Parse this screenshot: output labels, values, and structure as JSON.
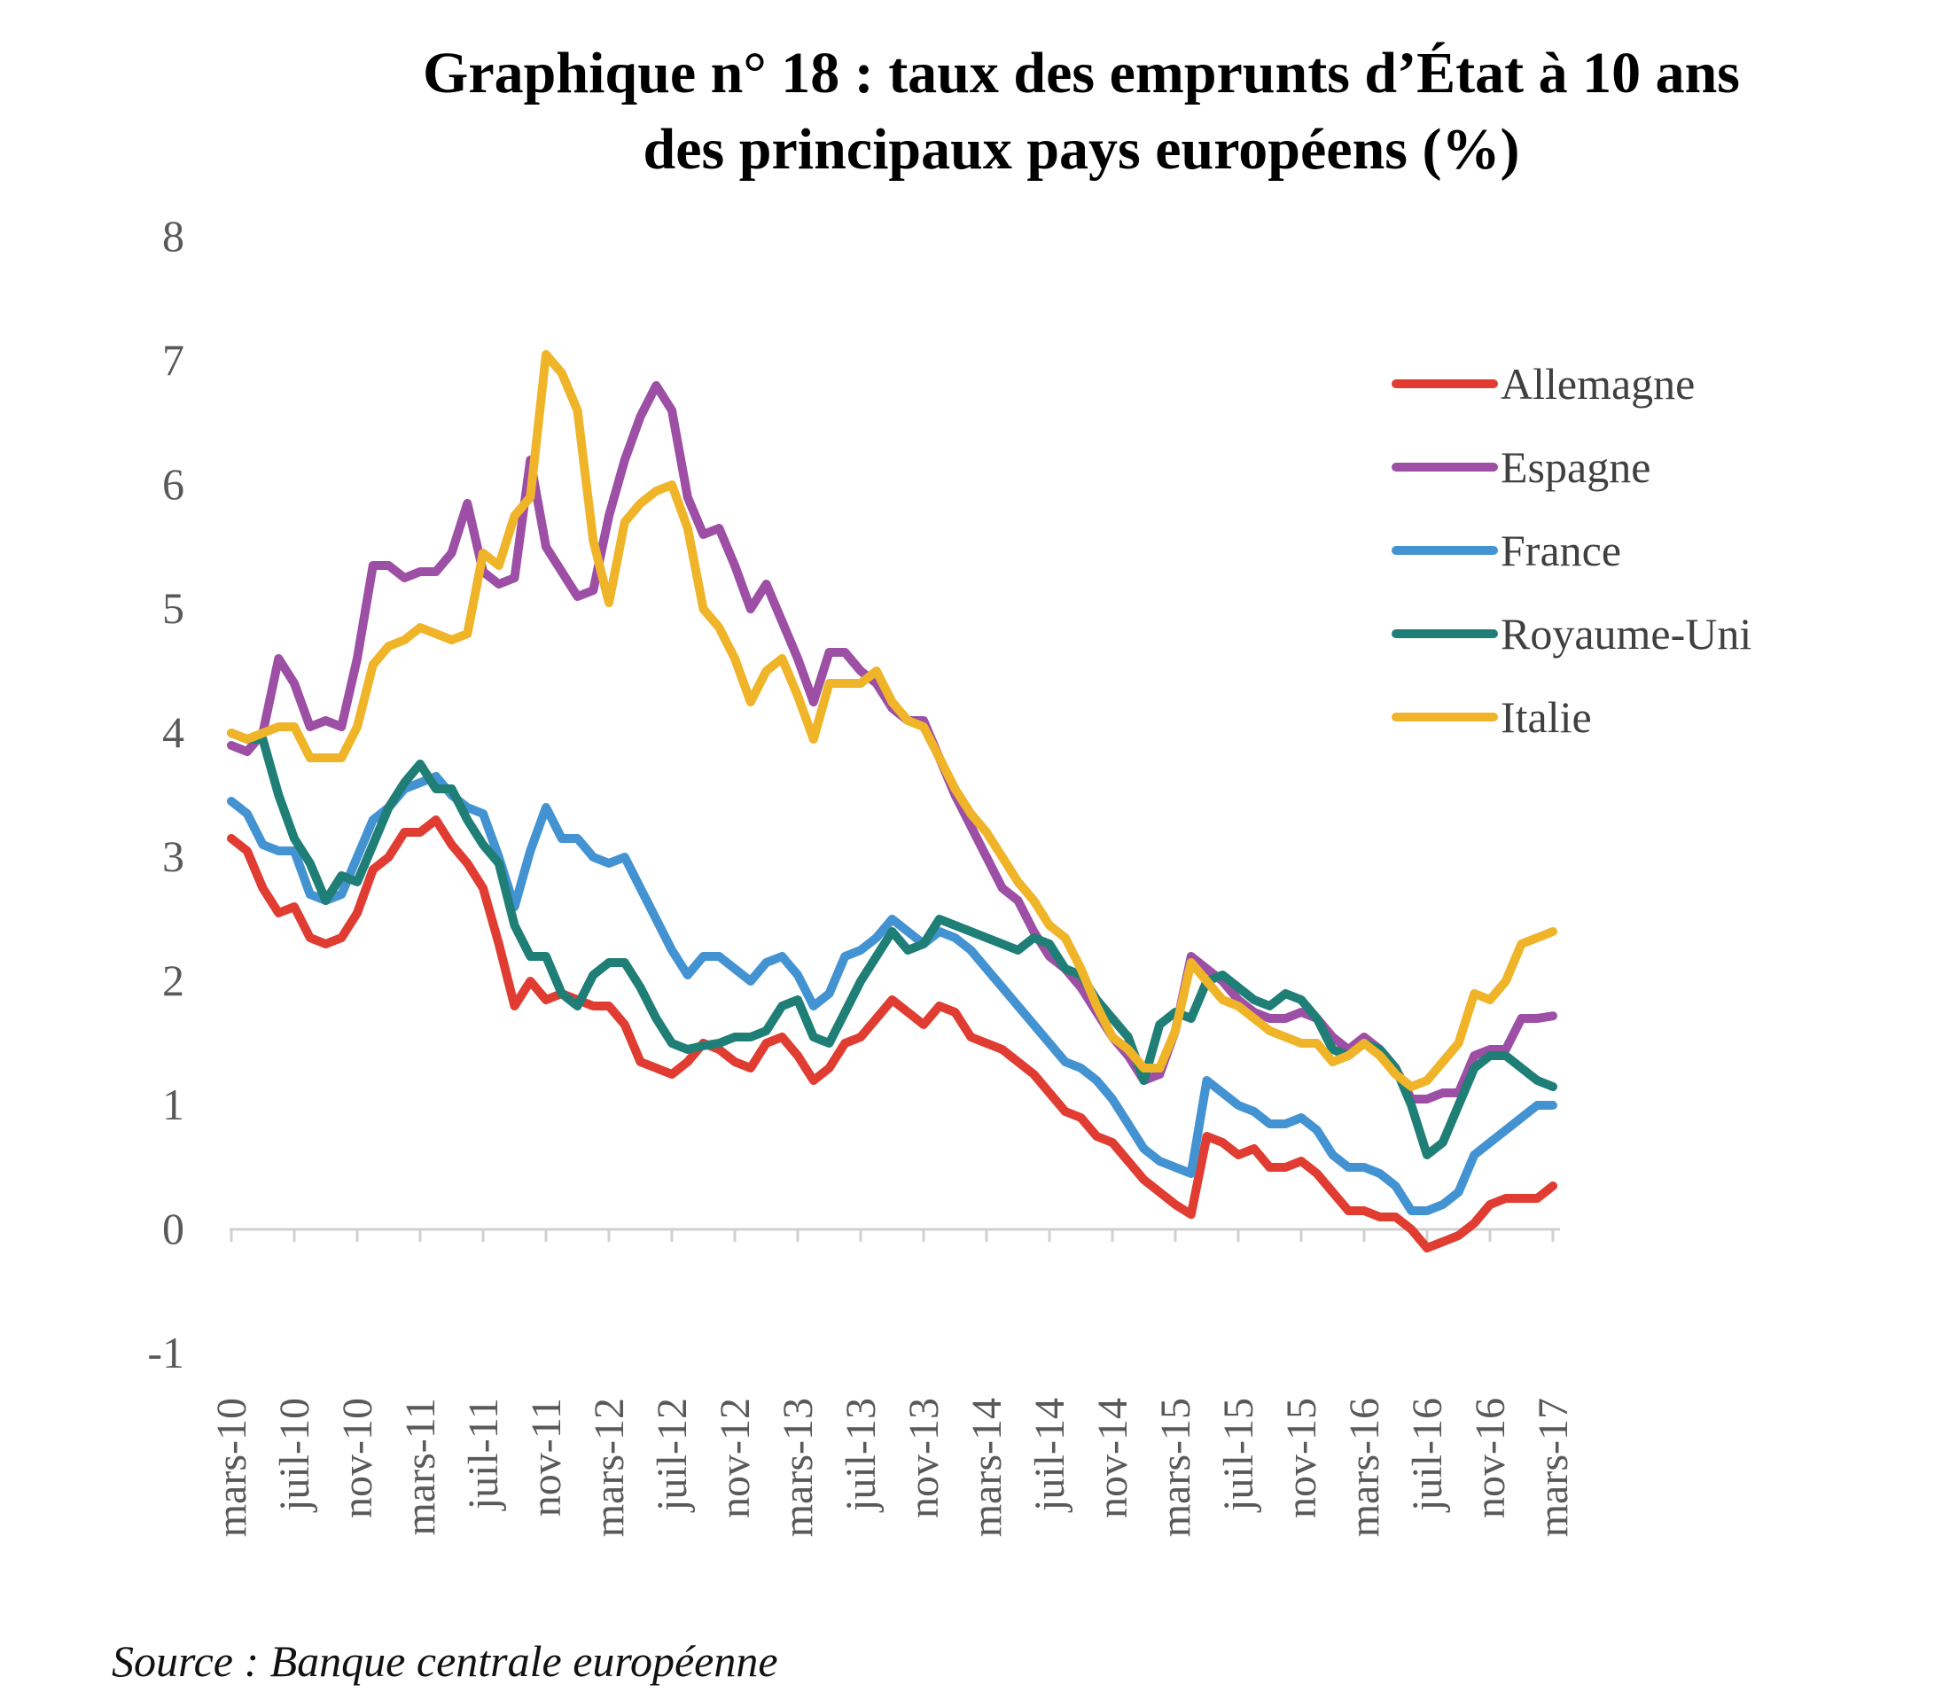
{
  "title_line1": "Graphique n° 18 : taux des emprunts d’État à 10 ans",
  "title_line2": "des principaux pays européens (%)",
  "source": "Source : Banque centrale européenne",
  "chart_data": {
    "type": "line",
    "title": "Graphique n° 18 : taux des emprunts d’État à 10 ans des principaux pays européens (%)",
    "xlabel": "",
    "ylabel": "%",
    "ylim": [
      -1,
      8
    ],
    "yticks": [
      8,
      7,
      6,
      5,
      4,
      3,
      2,
      1,
      0,
      -1
    ],
    "grid": false,
    "legend_position": "top-right",
    "x_tick_labels": [
      "mars-10",
      "juil-10",
      "nov-10",
      "mars-11",
      "juil-11",
      "nov-11",
      "mars-12",
      "juil-12",
      "nov-12",
      "mars-13",
      "juil-13",
      "nov-13",
      "mars-14",
      "juil-14",
      "nov-14",
      "mars-15",
      "juil-15",
      "nov-15",
      "mars-16",
      "juil-16",
      "nov-16",
      "mars-17"
    ],
    "x_start": "mars-10",
    "x_end": "mars-17",
    "x_frequency": "monthly",
    "series": [
      {
        "name": "Allemagne",
        "color": "#e03c31",
        "values": [
          3.15,
          3.05,
          2.75,
          2.55,
          2.6,
          2.35,
          2.3,
          2.35,
          2.55,
          2.9,
          3.0,
          3.2,
          3.2,
          3.3,
          3.1,
          2.95,
          2.75,
          2.3,
          1.8,
          2.0,
          1.85,
          1.9,
          1.85,
          1.8,
          1.8,
          1.65,
          1.35,
          1.3,
          1.25,
          1.35,
          1.5,
          1.45,
          1.35,
          1.3,
          1.5,
          1.55,
          1.4,
          1.2,
          1.3,
          1.5,
          1.55,
          1.7,
          1.85,
          1.75,
          1.65,
          1.8,
          1.75,
          1.55,
          1.5,
          1.45,
          1.35,
          1.25,
          1.1,
          0.95,
          0.9,
          0.75,
          0.7,
          0.55,
          0.4,
          0.3,
          0.2,
          0.12,
          0.75,
          0.7,
          0.6,
          0.65,
          0.5,
          0.5,
          0.55,
          0.45,
          0.3,
          0.15,
          0.15,
          0.1,
          0.1,
          0.0,
          -0.15,
          -0.1,
          -0.05,
          0.05,
          0.2,
          0.25,
          0.25,
          0.25,
          0.35
        ]
      },
      {
        "name": "Espagne",
        "color": "#9c4fa4",
        "values": [
          3.9,
          3.85,
          4.0,
          4.6,
          4.4,
          4.05,
          4.1,
          4.05,
          4.6,
          5.35,
          5.35,
          5.25,
          5.3,
          5.3,
          5.45,
          5.85,
          5.3,
          5.2,
          5.25,
          6.2,
          5.5,
          5.3,
          5.1,
          5.15,
          5.75,
          6.2,
          6.55,
          6.8,
          6.6,
          5.9,
          5.6,
          5.65,
          5.35,
          5.0,
          5.2,
          4.9,
          4.6,
          4.25,
          4.65,
          4.65,
          4.5,
          4.4,
          4.2,
          4.1,
          4.1,
          3.8,
          3.5,
          3.25,
          3.0,
          2.75,
          2.65,
          2.4,
          2.2,
          2.1,
          1.95,
          1.75,
          1.55,
          1.4,
          1.2,
          1.25,
          1.6,
          2.2,
          2.1,
          2.0,
          1.85,
          1.75,
          1.7,
          1.7,
          1.75,
          1.7,
          1.55,
          1.45,
          1.55,
          1.45,
          1.3,
          1.05,
          1.05,
          1.1,
          1.1,
          1.4,
          1.45,
          1.45,
          1.7,
          1.7,
          1.72
        ]
      },
      {
        "name": "France",
        "color": "#4393d3",
        "values": [
          3.45,
          3.35,
          3.1,
          3.05,
          3.05,
          2.7,
          2.65,
          2.7,
          3.0,
          3.3,
          3.4,
          3.55,
          3.6,
          3.65,
          3.5,
          3.4,
          3.35,
          3.0,
          2.6,
          3.05,
          3.4,
          3.15,
          3.15,
          3.0,
          2.95,
          3.0,
          2.75,
          2.5,
          2.25,
          2.05,
          2.2,
          2.2,
          2.1,
          2.0,
          2.15,
          2.2,
          2.05,
          1.8,
          1.9,
          2.2,
          2.25,
          2.35,
          2.5,
          2.4,
          2.3,
          2.4,
          2.35,
          2.25,
          2.1,
          1.95,
          1.8,
          1.65,
          1.5,
          1.35,
          1.3,
          1.2,
          1.05,
          0.85,
          0.65,
          0.55,
          0.5,
          0.45,
          1.2,
          1.1,
          1.0,
          0.95,
          0.85,
          0.85,
          0.9,
          0.8,
          0.6,
          0.5,
          0.5,
          0.45,
          0.35,
          0.15,
          0.15,
          0.2,
          0.3,
          0.6,
          0.7,
          0.8,
          0.9,
          1.0,
          1.0
        ]
      },
      {
        "name": "Royaume-Uni",
        "color": "#1f7f76",
        "values": [
          4.0,
          3.95,
          3.95,
          3.5,
          3.15,
          2.95,
          2.65,
          2.85,
          2.8,
          3.1,
          3.4,
          3.6,
          3.75,
          3.55,
          3.55,
          3.3,
          3.1,
          2.95,
          2.45,
          2.2,
          2.2,
          1.9,
          1.8,
          2.05,
          2.15,
          2.15,
          1.95,
          1.7,
          1.5,
          1.45,
          1.48,
          1.5,
          1.55,
          1.55,
          1.6,
          1.8,
          1.85,
          1.55,
          1.5,
          1.75,
          2.0,
          2.2,
          2.4,
          2.25,
          2.3,
          2.5,
          2.45,
          2.4,
          2.35,
          2.3,
          2.25,
          2.35,
          2.3,
          2.1,
          2.05,
          1.85,
          1.7,
          1.55,
          1.2,
          1.65,
          1.75,
          1.7,
          2.0,
          2.05,
          1.95,
          1.85,
          1.8,
          1.9,
          1.85,
          1.7,
          1.45,
          1.4,
          1.5,
          1.45,
          1.3,
          1.0,
          0.6,
          0.7,
          1.0,
          1.3,
          1.4,
          1.4,
          1.3,
          1.2,
          1.15
        ]
      },
      {
        "name": "Italie",
        "color": "#f0b429",
        "values": [
          4.0,
          3.95,
          4.0,
          4.05,
          4.05,
          3.8,
          3.8,
          3.8,
          4.05,
          4.55,
          4.7,
          4.75,
          4.85,
          4.8,
          4.75,
          4.8,
          5.45,
          5.35,
          5.75,
          5.9,
          7.05,
          6.9,
          6.6,
          5.55,
          5.05,
          5.7,
          5.85,
          5.95,
          6.0,
          5.65,
          5.0,
          4.85,
          4.6,
          4.25,
          4.5,
          4.6,
          4.3,
          3.95,
          4.4,
          4.4,
          4.4,
          4.5,
          4.25,
          4.1,
          4.05,
          3.8,
          3.55,
          3.35,
          3.2,
          3.0,
          2.8,
          2.65,
          2.45,
          2.35,
          2.1,
          1.8,
          1.55,
          1.45,
          1.3,
          1.3,
          1.6,
          2.15,
          2.0,
          1.85,
          1.8,
          1.7,
          1.6,
          1.55,
          1.5,
          1.5,
          1.35,
          1.4,
          1.5,
          1.4,
          1.25,
          1.15,
          1.2,
          1.35,
          1.5,
          1.9,
          1.85,
          2.0,
          2.3,
          2.35,
          2.4
        ]
      }
    ]
  }
}
